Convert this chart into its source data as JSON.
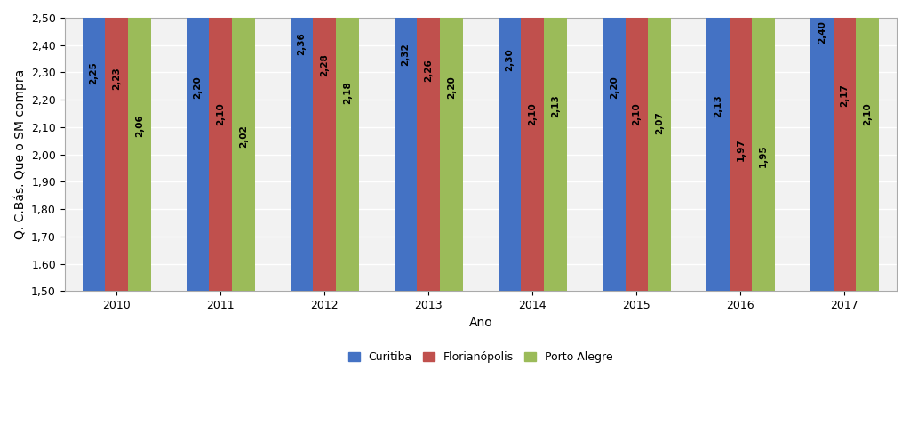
{
  "years": [
    "2010",
    "2011",
    "2012",
    "2013",
    "2014",
    "2015",
    "2016",
    "2017"
  ],
  "curitiba": [
    2.25,
    2.2,
    2.36,
    2.32,
    2.3,
    2.2,
    2.13,
    2.4
  ],
  "florianopolis": [
    2.23,
    2.1,
    2.28,
    2.26,
    2.1,
    2.1,
    1.97,
    2.17
  ],
  "porto_alegre": [
    2.06,
    2.02,
    2.18,
    2.2,
    2.13,
    2.07,
    1.95,
    2.1
  ],
  "color_curitiba": "#4472C4",
  "color_florianopolis": "#C0504D",
  "color_porto_alegre": "#9BBB59",
  "ylabel": "Q. C.Bás. Que o SM compra",
  "xlabel": "Ano",
  "ylim_min": 1.5,
  "ylim_max": 2.5,
  "yticks": [
    1.5,
    1.6,
    1.7,
    1.8,
    1.9,
    2.0,
    2.1,
    2.2,
    2.3,
    2.4,
    2.5
  ],
  "legend_labels": [
    "Curitiba",
    "Florianópolis",
    "Porto Alegre"
  ],
  "bar_width": 0.22,
  "fontsize_labels": 7.5,
  "fontsize_ticks": 9,
  "fontsize_axis_label": 10,
  "fontsize_legend": 9,
  "background_color": "#FFFFFF",
  "plot_bg_color": "#F2F2F2",
  "grid_color": "#FFFFFF"
}
